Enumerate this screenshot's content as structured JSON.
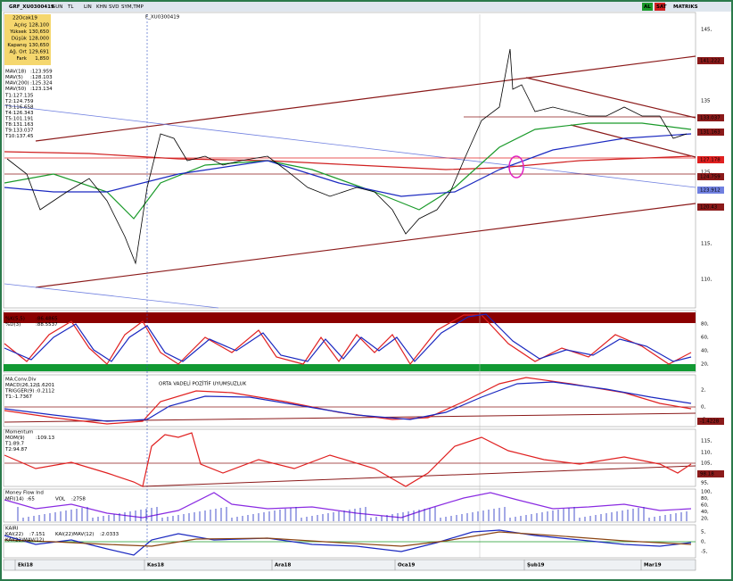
{
  "toolbar": {
    "symbol": "GRF_XU0300419",
    "items": [
      "GUN",
      "TL",
      "LIN",
      "KHN",
      "SVD",
      "SYM,TMP"
    ],
    "buttons": [
      "AL",
      "SAT"
    ],
    "brand": "MATRIKS"
  },
  "main_panel": {
    "marker_label": "F_XU0300419",
    "info_box": {
      "date": "22Ocak19",
      "rows": [
        {
          "label": "Açılış",
          "value": "128,100"
        },
        {
          "label": "Yüksek",
          "value": "130,650"
        },
        {
          "label": "Düşük",
          "value": "128,000"
        },
        {
          "label": "Kapanış",
          "value": "130,650"
        },
        {
          "label": "Ağ. Ort",
          "value": "129,691"
        },
        {
          "label": "Fark",
          "value": "1,850"
        }
      ]
    },
    "legend": [
      {
        "name": "MAV(18)",
        "value": ":123.959"
      },
      {
        "name": "MAV(5)",
        "value": ":128.103"
      },
      {
        "name": "MAV(200)",
        "value": ":125.324"
      },
      {
        "name": "MAV(50)",
        "value": ":123.134"
      }
    ],
    "levels": [
      "T1:127.135",
      "T2:124.759",
      "T3:116.658",
      "T4:126.343",
      "T5:101.191",
      "T8:131.163",
      "T9:133.037",
      "T10:137.45"
    ],
    "axis_ticks": [
      "145,",
      "135",
      "125,",
      "115,",
      "110,"
    ],
    "price_labels": [
      "141.222",
      "133.037",
      "131.163",
      "127.178",
      "124.759",
      "123.912",
      "120.43"
    ]
  },
  "stochastic": {
    "legend": [
      {
        "name": "%K(5,5)",
        "value": ":86.4865"
      },
      {
        "name": "%D(3)",
        "value": ":88.5537"
      }
    ],
    "axis_ticks": [
      "80,",
      "60,",
      "40,",
      "20,"
    ]
  },
  "macd": {
    "title": "MA.Conv.Div",
    "legend": [
      {
        "name": "MACD(26,12)",
        "value": ":1.6201"
      },
      {
        "name": "TRIGGER(9)",
        "value": ":0.2112"
      }
    ],
    "level": "T1:-1.7367",
    "annotation": "ORTA VADELİ POZİTİF UYUMSUZLUK",
    "axis_ticks": [
      "2,",
      "0,",
      "-2"
    ],
    "price_label": "-1.4228"
  },
  "momentum": {
    "title": "Momentum",
    "legend": [
      {
        "name": "MOM(9)",
        "value": ":109.13"
      }
    ],
    "levels": [
      "T1:89.7",
      "T2:94.87"
    ],
    "axis_ticks": [
      "115,",
      "110,",
      "105,",
      "100,",
      "95,"
    ],
    "price_label": "98.18"
  },
  "mfi": {
    "title": "Money Flow Ind",
    "legend": [
      {
        "name": "MFI(14)",
        "value": ":65"
      },
      {
        "name": "VOL",
        "value": ":2758"
      }
    ],
    "axis_ticks": [
      "100,",
      "80,",
      "60,",
      "40,",
      "20,"
    ]
  },
  "kairi": {
    "title": "KAIRI",
    "legend": [
      {
        "name": "KAI(22)",
        "value": ":7.151"
      },
      {
        "name": "KAI(22)MAV(12)",
        "value": ":2.0333"
      }
    ],
    "axis_ticks": [
      "5,",
      "0,",
      "-5,"
    ]
  },
  "date_axis": [
    "Eki18",
    "Kas18",
    "Ara18",
    "Oca19",
    "Şub19",
    "Mar19"
  ]
}
